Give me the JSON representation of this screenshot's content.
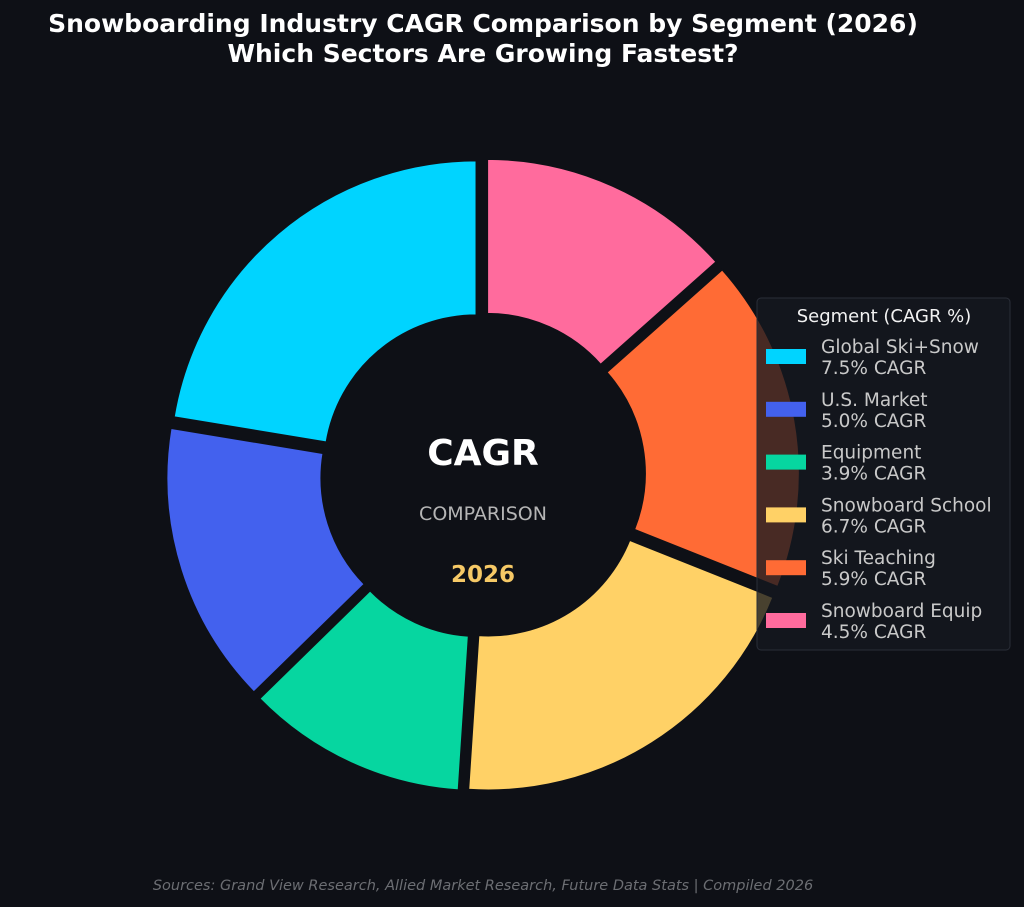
{
  "chart_data": {
    "type": "pie",
    "variant": "donut",
    "title": "Snowboarding Industry CAGR Comparison by Segment (2026)",
    "subtitle": "Which Sectors Are Growing Fastest?",
    "center": {
      "main": "CAGR",
      "sub": "COMPARISON",
      "year": "2026"
    },
    "segments": [
      {
        "name": "Global Ski+Snow",
        "value": 7.5,
        "label": "7.5% CAGR",
        "color": "#00d4ff"
      },
      {
        "name": "U.S. Market",
        "value": 5.0,
        "label": "5.0% CAGR",
        "color": "#4361ee"
      },
      {
        "name": "Equipment",
        "value": 3.9,
        "label": "3.9% CAGR",
        "color": "#06d6a0"
      },
      {
        "name": "Snowboard School",
        "value": 6.7,
        "label": "6.7% CAGR",
        "color": "#ffd166"
      },
      {
        "name": "Ski Teaching",
        "value": 5.9,
        "label": "5.9% CAGR",
        "color": "#ff6b35"
      },
      {
        "name": "Snowboard Equip",
        "value": 4.5,
        "label": "4.5% CAGR",
        "color": "#ff6b9d"
      }
    ],
    "legend": {
      "title": "Segment (CAGR %)",
      "placement": "right"
    },
    "start_angle": "12 o'clock",
    "direction": "counterclockwise",
    "exploded": true
  },
  "footer": {
    "source": "Sources: Grand View Research, Allied Market Research, Future Data Stats | Compiled 2026"
  }
}
